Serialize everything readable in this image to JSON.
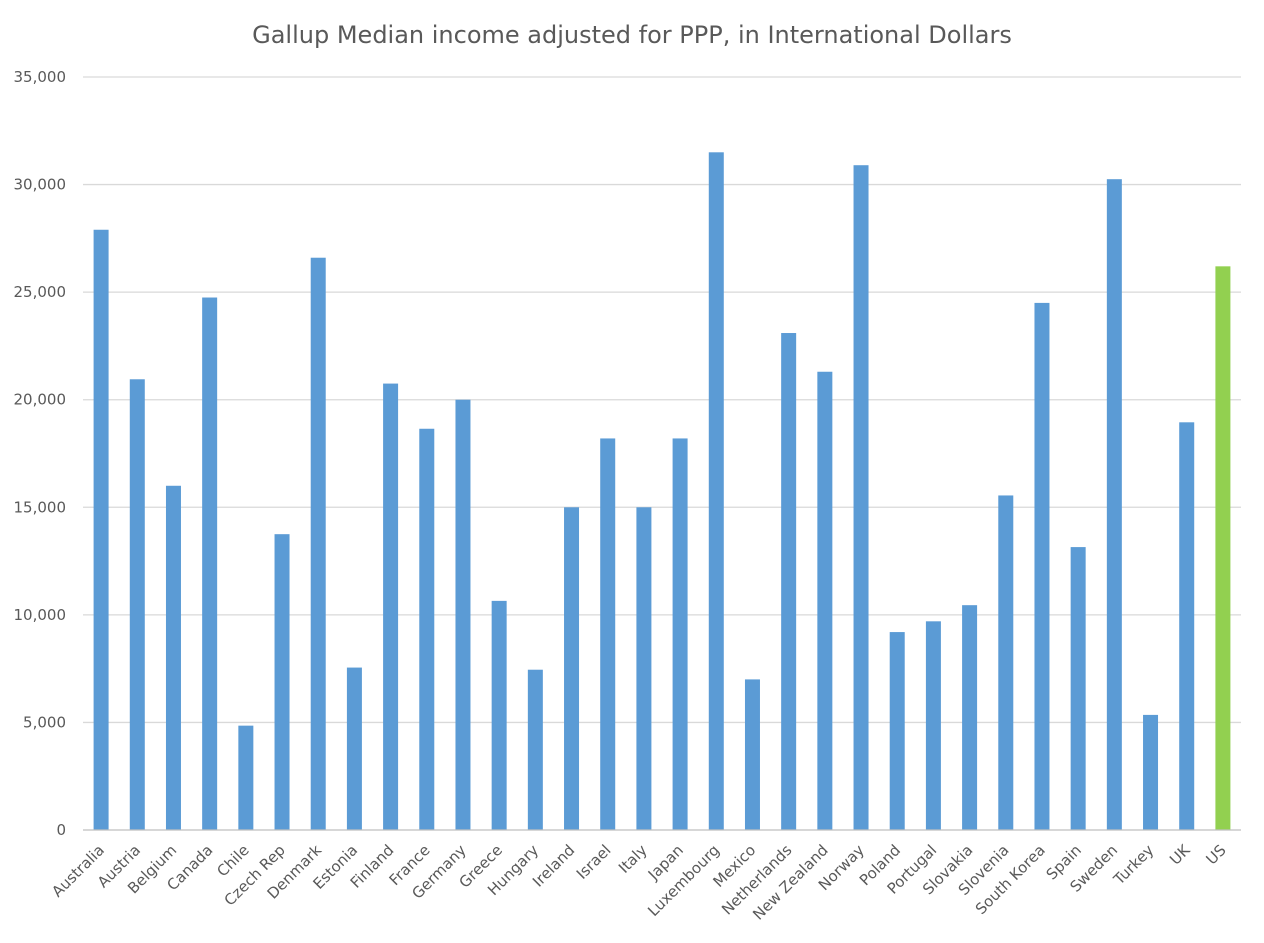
{
  "chart_data": {
    "type": "bar",
    "title": "Gallup Median income adjusted for PPP, in International Dollars",
    "xlabel": "",
    "ylabel": "",
    "ylim": [
      0,
      35000
    ],
    "yticks": [
      0,
      5000,
      10000,
      15000,
      20000,
      25000,
      30000,
      35000
    ],
    "ytick_labels": [
      "0",
      "5,000",
      "10,000",
      "15,000",
      "20,000",
      "25,000",
      "30,000",
      "35,000"
    ],
    "grid": true,
    "legend": "none",
    "colors": {
      "default": "#5b9bd5",
      "highlight": "#92d050"
    },
    "highlight_category": "US",
    "categories": [
      "Australia",
      "Austria",
      "Belgium",
      "Canada",
      "Chile",
      "Czech Rep",
      "Denmark",
      "Estonia",
      "Finland",
      "France",
      "Germany",
      "Greece",
      "Hungary",
      "Ireland",
      "Israel",
      "Italy",
      "Japan",
      "Luxembourg",
      "Mexico",
      "Netherlands",
      "New Zealand",
      "Norway",
      "Poland",
      "Portugal",
      "Slovakia",
      "Slovenia",
      "South Korea",
      "Spain",
      "Sweden",
      "Turkey",
      "UK",
      "US"
    ],
    "values": [
      27900,
      20950,
      16000,
      24750,
      4850,
      13750,
      26600,
      7550,
      20750,
      18650,
      20000,
      10650,
      7450,
      15000,
      18200,
      15000,
      18200,
      31500,
      7000,
      23100,
      21300,
      30900,
      9200,
      9700,
      10450,
      15550,
      24500,
      13150,
      30250,
      5350,
      18950,
      26200
    ]
  }
}
